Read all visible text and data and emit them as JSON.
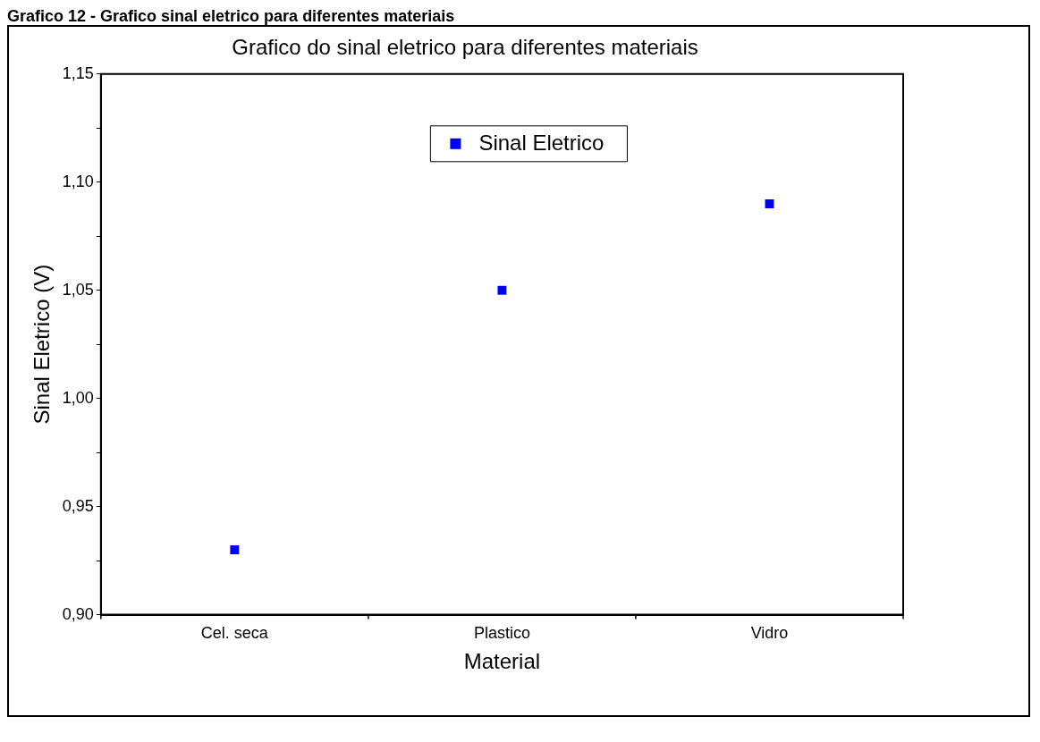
{
  "chart_data": {
    "type": "scatter",
    "title": "Grafico 12 - Grafico sinal eletrico para diferentes materiais",
    "subtitle": "Grafico do sinal eletrico para diferentes materiais",
    "xlabel": "Material",
    "ylabel": "Sinal Eletrico (V)",
    "categories": [
      "Cel. seca",
      "Plastico",
      "Vidro"
    ],
    "series": [
      {
        "name": "Sinal Eletrico",
        "color": "#0000ff",
        "values": [
          0.93,
          1.05,
          1.09
        ]
      }
    ],
    "ylim": [
      0.9,
      1.15
    ],
    "yticks": [
      {
        "value": 0.9,
        "label": "0,90"
      },
      {
        "value": 0.925,
        "label": null
      },
      {
        "value": 0.95,
        "label": "0,95"
      },
      {
        "value": 0.975,
        "label": null
      },
      {
        "value": 1.0,
        "label": "1,00"
      },
      {
        "value": 1.025,
        "label": null
      },
      {
        "value": 1.05,
        "label": "1,05"
      },
      {
        "value": 1.075,
        "label": null
      },
      {
        "value": 1.1,
        "label": "1,10"
      },
      {
        "value": 1.125,
        "label": null
      },
      {
        "value": 1.15,
        "label": "1,15"
      }
    ],
    "marker": "square",
    "grid": false,
    "legend": "top"
  }
}
